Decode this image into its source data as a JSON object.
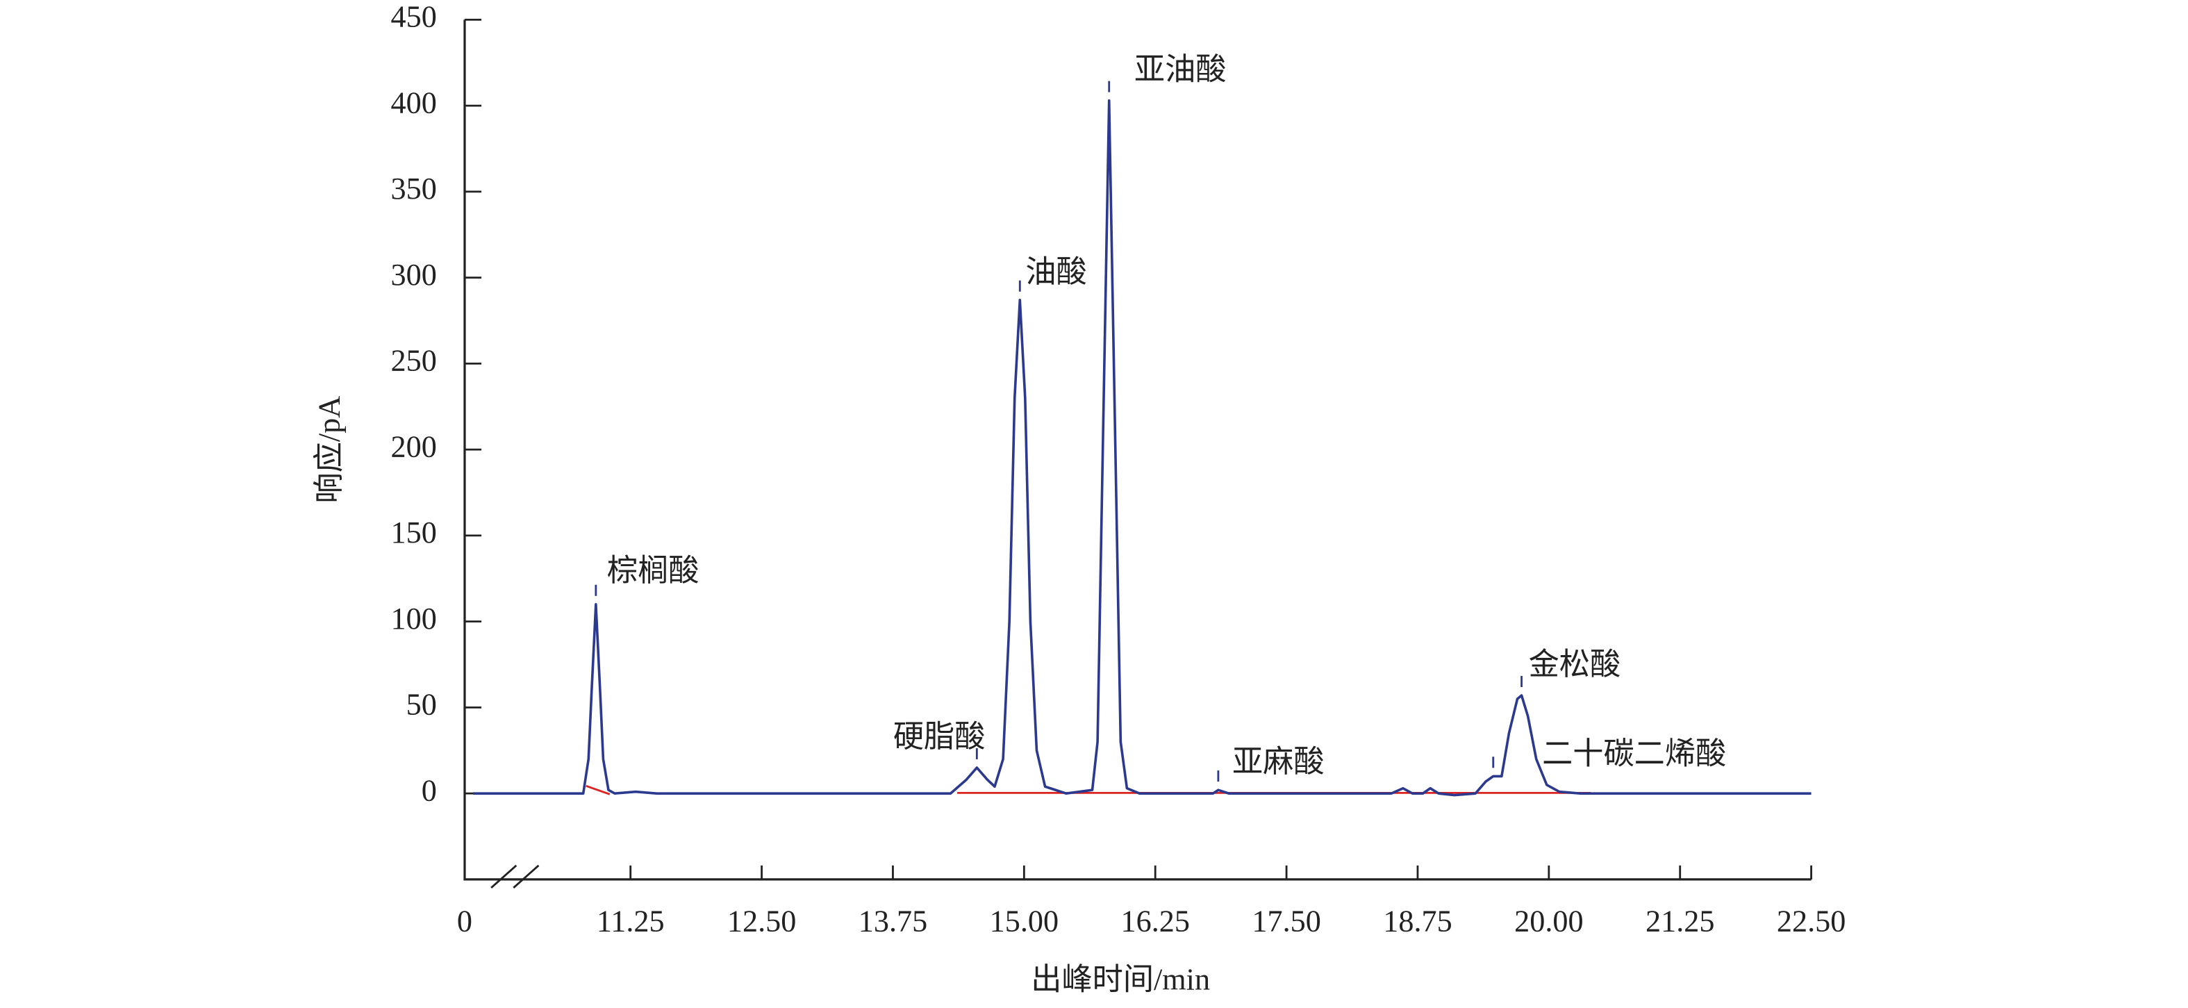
{
  "chart_data": {
    "type": "line",
    "x_label": "出峰时间/min",
    "y_label": "响应/pA",
    "color": "#2b3a8f",
    "xlim": [
      0,
      22.5
    ],
    "x_break": [
      0,
      9.67
    ],
    "xticks": [
      {
        "value": 0,
        "label": "0"
      },
      11.25,
      {
        "value": 12.5,
        "label": "12.50"
      },
      13.75,
      {
        "value": 15,
        "label": "15.00"
      },
      16.25,
      {
        "value": 17.5,
        "label": "17.50"
      },
      18.75,
      {
        "value": 20,
        "label": "20.00"
      },
      21.25,
      {
        "value": 22.5,
        "label": "22.50"
      }
    ],
    "ylim": [
      -50,
      450
    ],
    "yticks": [
      0,
      50,
      100,
      150,
      200,
      250,
      300,
      350,
      400,
      450
    ],
    "x": [
      9.75,
      10.8,
      10.85,
      10.88,
      10.92,
      10.96,
      10.99,
      11.04,
      11.1,
      11.3,
      11.5,
      14.3,
      14.45,
      14.55,
      14.65,
      14.72,
      14.8,
      14.86,
      14.91,
      14.96,
      15.01,
      15.06,
      15.12,
      15.2,
      15.4,
      15.65,
      15.7,
      15.75,
      15.81,
      15.87,
      15.92,
      15.98,
      16.1,
      16.8,
      16.85,
      16.95,
      18.5,
      18.61,
      18.7,
      18.8,
      18.87,
      18.95,
      19.1,
      19.3,
      19.4,
      19.47,
      19.55,
      19.62,
      19.7,
      19.74,
      19.8,
      19.88,
      19.98,
      20.1,
      20.3,
      22.5
    ],
    "values": [
      0,
      0,
      20,
      60,
      110,
      60,
      20,
      2,
      0,
      1,
      0,
      0,
      8,
      15,
      8,
      4,
      20,
      100,
      230,
      287,
      230,
      100,
      25,
      4,
      0,
      2,
      30,
      200,
      403,
      200,
      30,
      3,
      0,
      0,
      2,
      0,
      0,
      3,
      0,
      0,
      3,
      0,
      -1,
      0,
      7,
      10,
      10,
      35,
      55,
      57,
      45,
      20,
      5,
      1,
      0,
      0
    ],
    "annotations": [
      {
        "text": "棕榈酸",
        "x": 10.92,
        "y": 110
      },
      {
        "text": "硬脂酸",
        "x": 14.55,
        "y": 15
      },
      {
        "text": "油酸",
        "x": 14.96,
        "y": 287
      },
      {
        "text": "亚油酸",
        "x": 15.81,
        "y": 403
      },
      {
        "text": "亚麻酸",
        "x": 16.85,
        "y": 2
      },
      {
        "text": "金松酸",
        "x": 19.74,
        "y": 57
      },
      {
        "text": "二十碳二烯酸",
        "x": 19.47,
        "y": 10
      }
    ]
  }
}
